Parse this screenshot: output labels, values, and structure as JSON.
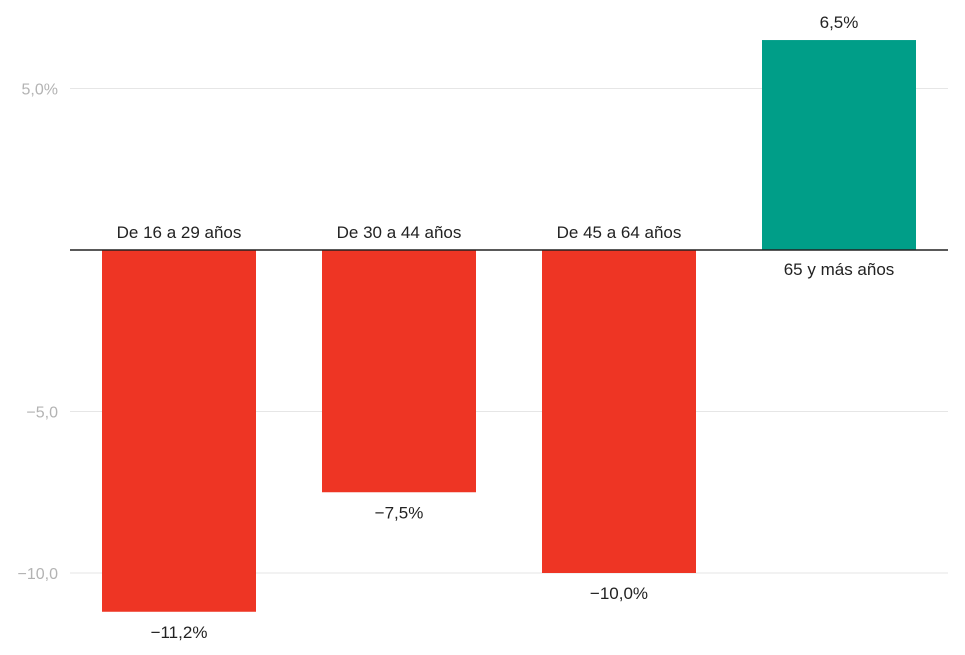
{
  "chart_data": {
    "type": "bar",
    "categories": [
      "De 16 a 29 años",
      "De 30 a 44 años",
      "De 45 a 64 años",
      "65 y más años"
    ],
    "values": [
      -11.2,
      -7.5,
      -10.0,
      6.5
    ],
    "value_labels": [
      "−11,2%",
      "−7,5%",
      "−10,0%",
      "6,5%"
    ],
    "y_ticks": [
      5,
      -5,
      -10
    ],
    "y_tick_labels": [
      "5,0%",
      "−5,0",
      "−10,0"
    ],
    "ylim": [
      -11.2,
      6.5
    ],
    "grid": true,
    "colors": {
      "negative": "#ee3524",
      "positive": "#009e88",
      "grid": "#e6e6e6",
      "zero_line": "#222222"
    }
  }
}
